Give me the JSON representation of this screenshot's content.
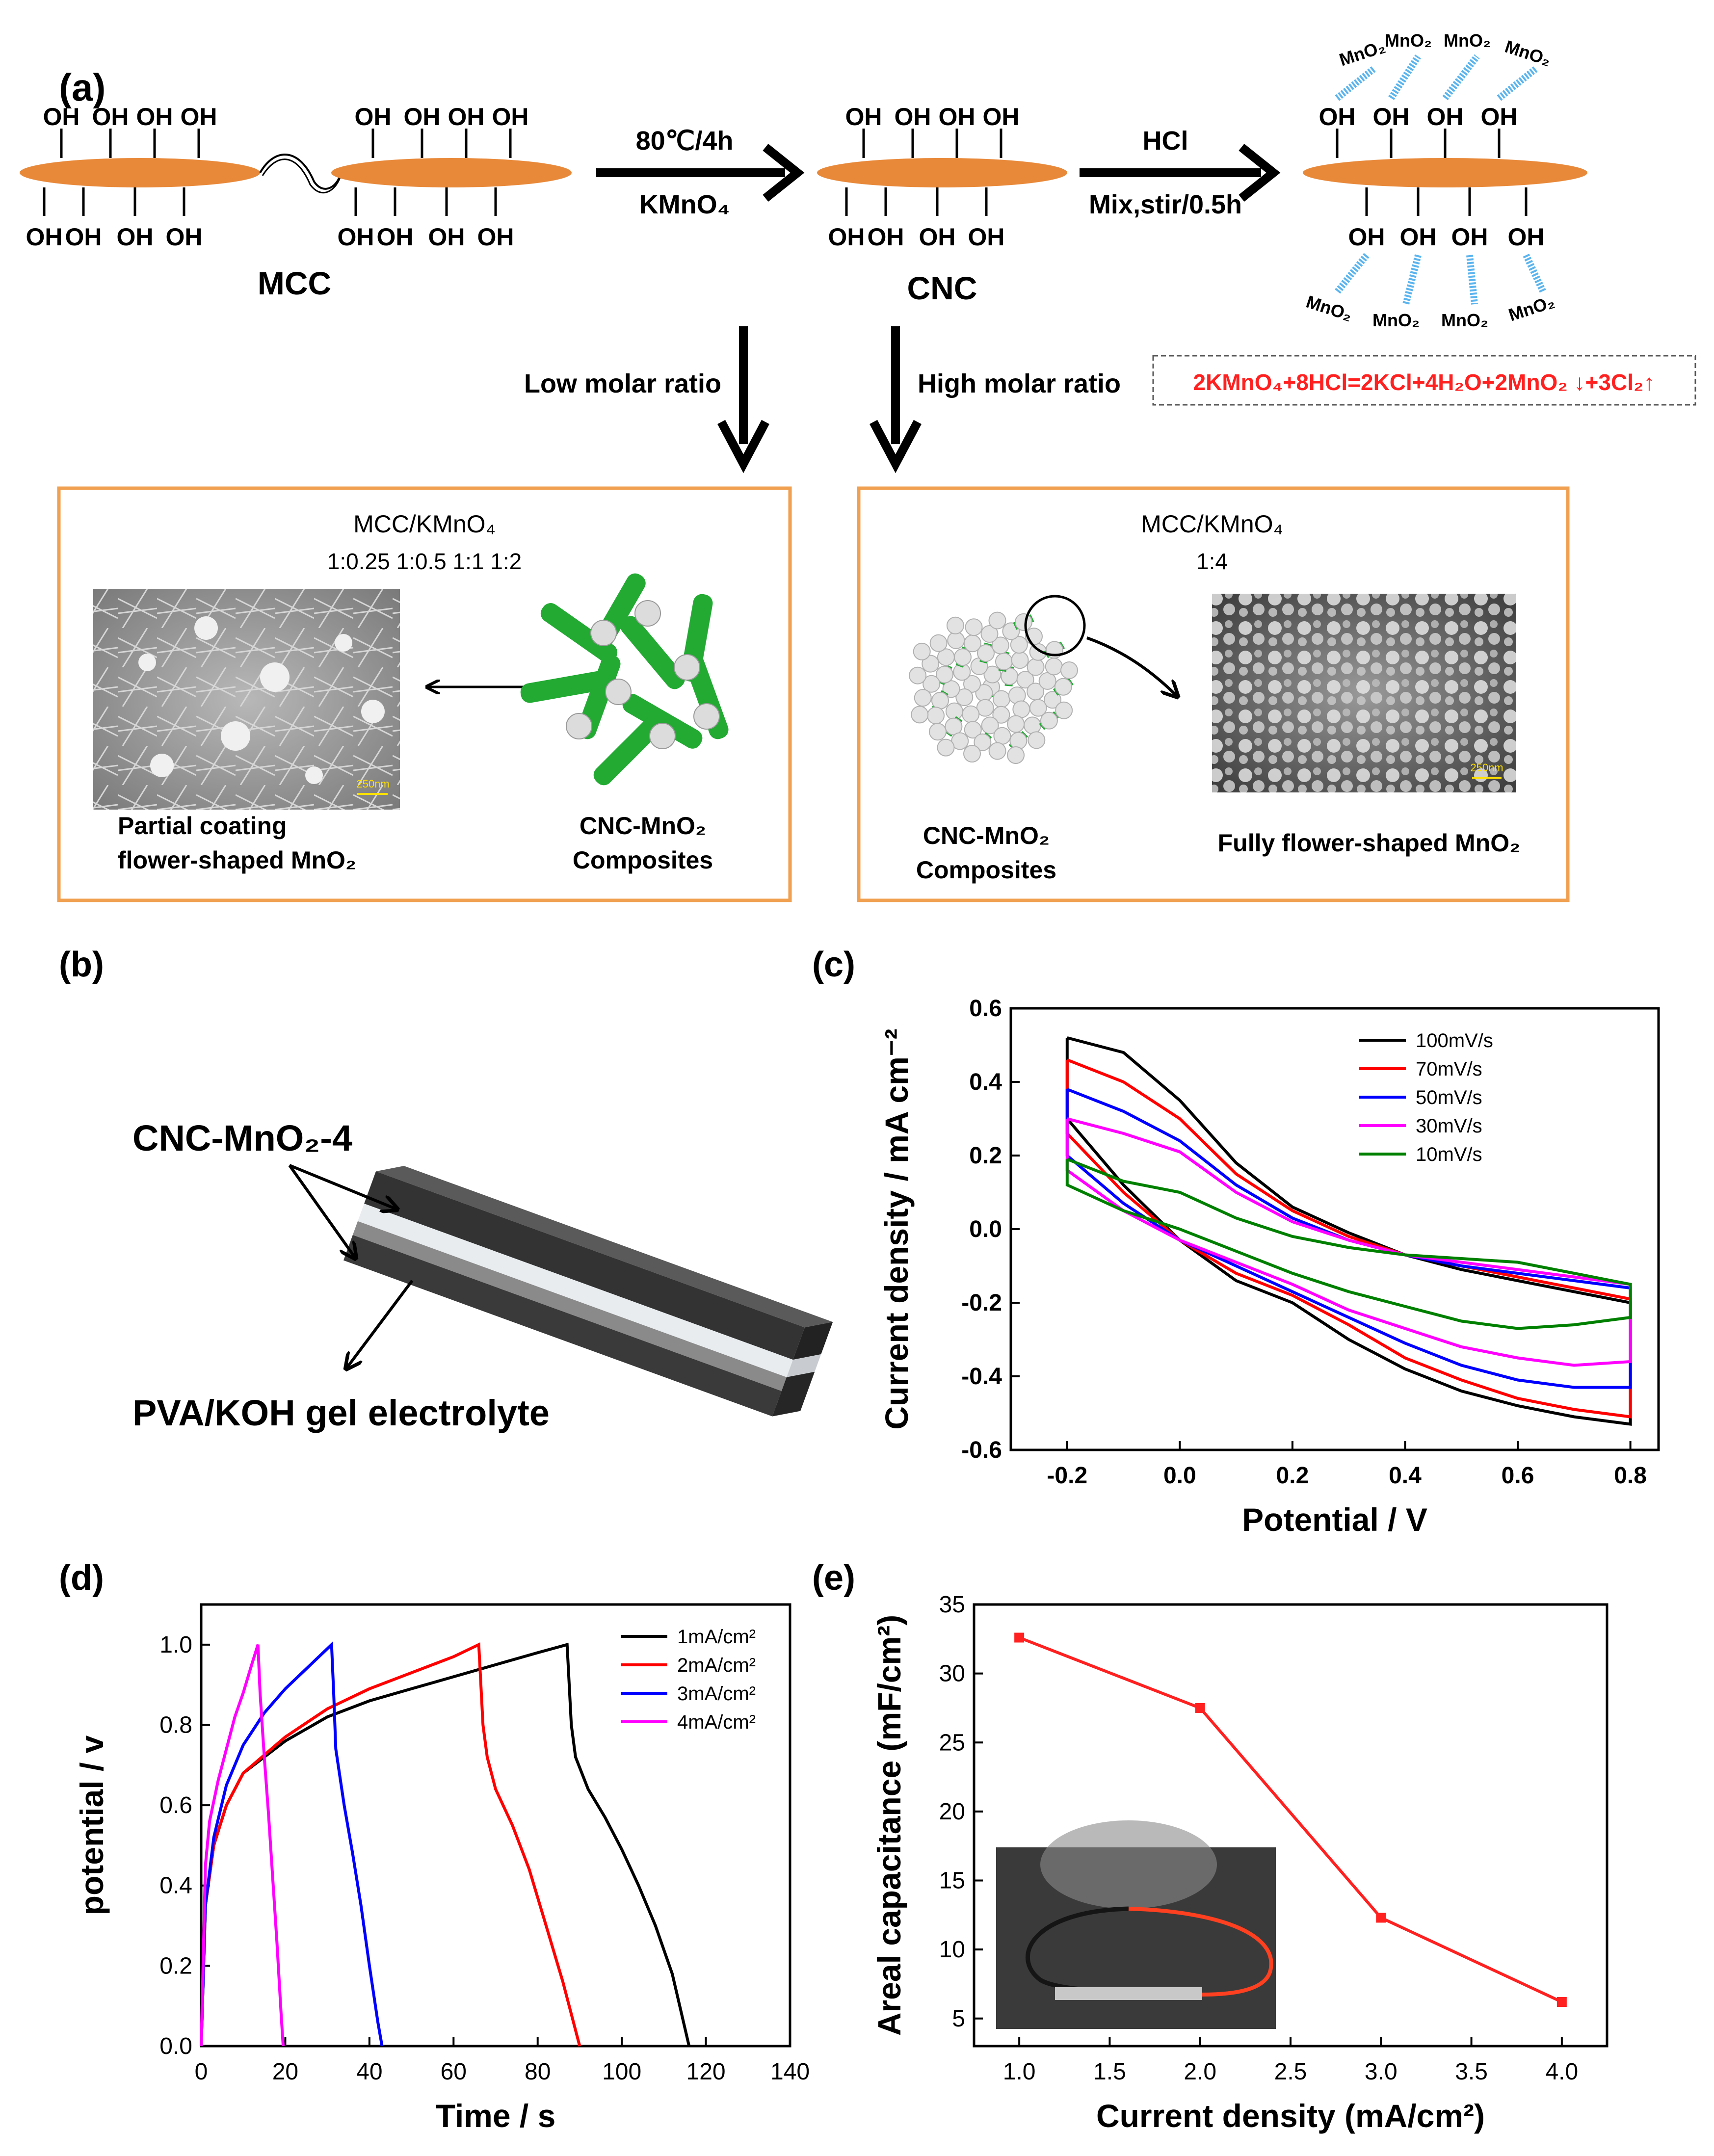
{
  "colors": {
    "orange_box": "#f0a050",
    "ellipse": "#e8893a",
    "red": "#ff2020",
    "green": "#22aa33",
    "glass": "#cfe9ff"
  },
  "panel_a": {
    "label": "(a)",
    "oh": "OH",
    "mcc": "MCC",
    "cnc": "CNC",
    "step1_top": "80℃/4h",
    "step1_bottom": "KMnO₄",
    "step2_top": "HCl",
    "step2_bottom": "Mix,stir/0.5h",
    "mno2": "MnO₂",
    "low_ratio": "Low molar ratio",
    "high_ratio": "High molar ratio",
    "equation": "2KMnO₄+8HCl=2KCl+4H₂O+2MnO₂ ↓+3Cl₂↑",
    "box_left": {
      "title": "MCC/KMnO₄",
      "ratios": "1:0.25 1:0.5 1:1 1:2",
      "scale": "250nm",
      "caption1": "Partial coating",
      "caption2": "flower-shaped MnO₂",
      "composite1": "CNC-MnO₂",
      "composite2": "Composites"
    },
    "box_right": {
      "title": "MCC/KMnO₄",
      "ratios": "1:4",
      "scale": "250nm",
      "composite1": "CNC-MnO₂",
      "composite2": "Composites",
      "caption": "Fully flower-shaped MnO₂"
    }
  },
  "panel_b": {
    "label": "(b)",
    "electrode": "CNC-MnO₂-4",
    "electrolyte": "PVA/KOH gel electrolyte"
  },
  "panel_c": {
    "label": "(c)"
  },
  "panel_d": {
    "label": "(d)"
  },
  "panel_e": {
    "label": "(e)"
  },
  "chart_data": [
    {
      "type": "line",
      "panel": "(c)",
      "xlabel": "Potential / V",
      "ylabel": "Current density / mA cm⁻²",
      "xlim": [
        -0.3,
        0.85
      ],
      "ylim": [
        -0.6,
        0.6
      ],
      "xticks": [
        -0.2,
        0.0,
        0.2,
        0.4,
        0.6,
        0.8
      ],
      "yticks": [
        -0.6,
        -0.4,
        -0.2,
        0.0,
        0.2,
        0.4,
        0.6
      ],
      "legend_position": "top-right",
      "series": [
        {
          "name": "100mV/s",
          "color": "#000000",
          "x": [
            -0.2,
            -0.1,
            0.0,
            0.1,
            0.2,
            0.3,
            0.4,
            0.5,
            0.6,
            0.7,
            0.8,
            0.8,
            0.7,
            0.6,
            0.5,
            0.4,
            0.3,
            0.2,
            0.1,
            0.0,
            -0.1,
            -0.2,
            -0.2
          ],
          "y": [
            0.52,
            0.48,
            0.35,
            0.18,
            0.06,
            -0.01,
            -0.07,
            -0.11,
            -0.14,
            -0.17,
            -0.2,
            -0.53,
            -0.51,
            -0.48,
            -0.44,
            -0.38,
            -0.3,
            -0.2,
            -0.14,
            -0.03,
            0.12,
            0.3,
            0.52
          ]
        },
        {
          "name": "70mV/s",
          "color": "#ff0000",
          "x": [
            -0.2,
            -0.1,
            0.0,
            0.1,
            0.2,
            0.3,
            0.4,
            0.5,
            0.6,
            0.7,
            0.8,
            0.8,
            0.7,
            0.6,
            0.5,
            0.4,
            0.3,
            0.2,
            0.1,
            0.0,
            -0.1,
            -0.2,
            -0.2
          ],
          "y": [
            0.46,
            0.4,
            0.3,
            0.15,
            0.05,
            -0.02,
            -0.07,
            -0.1,
            -0.13,
            -0.16,
            -0.19,
            -0.51,
            -0.49,
            -0.46,
            -0.41,
            -0.35,
            -0.26,
            -0.18,
            -0.12,
            -0.03,
            0.1,
            0.26,
            0.46
          ]
        },
        {
          "name": "50mV/s",
          "color": "#0000ff",
          "x": [
            -0.2,
            -0.1,
            0.0,
            0.1,
            0.2,
            0.3,
            0.4,
            0.5,
            0.6,
            0.7,
            0.8,
            0.8,
            0.7,
            0.6,
            0.5,
            0.4,
            0.3,
            0.2,
            0.1,
            0.0,
            -0.1,
            -0.2,
            -0.2
          ],
          "y": [
            0.38,
            0.32,
            0.24,
            0.12,
            0.03,
            -0.03,
            -0.07,
            -0.1,
            -0.12,
            -0.14,
            -0.16,
            -0.43,
            -0.43,
            -0.41,
            -0.37,
            -0.31,
            -0.24,
            -0.17,
            -0.1,
            -0.03,
            0.07,
            0.2,
            0.38
          ]
        },
        {
          "name": "30mV/s",
          "color": "#ff00ff",
          "x": [
            -0.2,
            -0.1,
            0.0,
            0.1,
            0.2,
            0.3,
            0.4,
            0.5,
            0.6,
            0.7,
            0.8,
            0.8,
            0.7,
            0.6,
            0.5,
            0.4,
            0.3,
            0.2,
            0.1,
            0.0,
            -0.1,
            -0.2,
            -0.2
          ],
          "y": [
            0.3,
            0.26,
            0.21,
            0.1,
            0.02,
            -0.03,
            -0.07,
            -0.09,
            -0.11,
            -0.13,
            -0.15,
            -0.36,
            -0.37,
            -0.35,
            -0.32,
            -0.27,
            -0.22,
            -0.15,
            -0.09,
            -0.03,
            0.05,
            0.16,
            0.3
          ]
        },
        {
          "name": "10mV/s",
          "color": "#008000",
          "x": [
            -0.2,
            -0.1,
            0.0,
            0.1,
            0.2,
            0.3,
            0.4,
            0.5,
            0.6,
            0.7,
            0.8,
            0.8,
            0.7,
            0.6,
            0.5,
            0.4,
            0.3,
            0.2,
            0.1,
            0.0,
            -0.1,
            -0.2,
            -0.2
          ],
          "y": [
            0.19,
            0.13,
            0.1,
            0.03,
            -0.02,
            -0.05,
            -0.07,
            -0.08,
            -0.09,
            -0.12,
            -0.15,
            -0.24,
            -0.26,
            -0.27,
            -0.25,
            -0.21,
            -0.17,
            -0.12,
            -0.06,
            0.0,
            0.05,
            0.12,
            0.19
          ]
        }
      ]
    },
    {
      "type": "line",
      "panel": "(d)",
      "xlabel": "Time / s",
      "ylabel": "potential / v",
      "xlim": [
        0,
        140
      ],
      "ylim": [
        0,
        1.1
      ],
      "xticks": [
        0,
        20,
        40,
        60,
        80,
        100,
        120,
        140
      ],
      "yticks": [
        0.0,
        0.2,
        0.4,
        0.6,
        0.8,
        1.0
      ],
      "legend_position": "top-right",
      "series": [
        {
          "name": "1mA/cm²",
          "color": "#000000",
          "x": [
            0,
            1,
            3,
            6,
            10,
            20,
            30,
            40,
            50,
            60,
            70,
            80,
            87,
            87.5,
            88,
            89,
            92,
            96,
            100,
            104,
            108,
            112,
            116
          ],
          "y": [
            0,
            0.35,
            0.5,
            0.6,
            0.68,
            0.76,
            0.82,
            0.86,
            0.89,
            0.92,
            0.95,
            0.98,
            1.0,
            0.9,
            0.8,
            0.72,
            0.64,
            0.57,
            0.49,
            0.4,
            0.3,
            0.18,
            0.0
          ]
        },
        {
          "name": "2mA/cm²",
          "color": "#ff0000",
          "x": [
            0,
            1,
            3,
            6,
            10,
            20,
            30,
            40,
            50,
            60,
            66,
            66.5,
            67,
            68,
            70,
            74,
            78,
            82,
            86,
            90
          ],
          "y": [
            0,
            0.35,
            0.5,
            0.6,
            0.68,
            0.77,
            0.84,
            0.89,
            0.93,
            0.97,
            1.0,
            0.9,
            0.8,
            0.72,
            0.64,
            0.55,
            0.44,
            0.3,
            0.16,
            0.0
          ]
        },
        {
          "name": "3mA/cm²",
          "color": "#0000ff",
          "x": [
            0,
            1,
            3,
            6,
            10,
            15,
            20,
            25,
            31,
            31.5,
            32,
            34,
            36,
            38,
            40,
            42,
            43
          ],
          "y": [
            0,
            0.35,
            0.52,
            0.65,
            0.75,
            0.83,
            0.89,
            0.94,
            1.0,
            0.88,
            0.74,
            0.6,
            0.48,
            0.35,
            0.2,
            0.06,
            0.0
          ]
        },
        {
          "name": "4mA/cm²",
          "color": "#ff00ff",
          "x": [
            0,
            1,
            2,
            4,
            6,
            8,
            10,
            12,
            13.5,
            14,
            15,
            16,
            17,
            18,
            19,
            19.5
          ],
          "y": [
            0,
            0.45,
            0.56,
            0.66,
            0.74,
            0.82,
            0.88,
            0.95,
            1.0,
            0.88,
            0.72,
            0.58,
            0.42,
            0.26,
            0.08,
            0.0
          ]
        }
      ]
    },
    {
      "type": "line",
      "panel": "(e)",
      "xlabel": "Current density (mA/cm²)",
      "ylabel": "Areal capacitance (mF/cm²)",
      "xlim": [
        0.75,
        4.25
      ],
      "ylim": [
        3,
        35
      ],
      "xticks": [
        1.0,
        1.5,
        2.0,
        2.5,
        3.0,
        3.5,
        4.0
      ],
      "yticks": [
        5,
        10,
        15,
        20,
        25,
        30,
        35
      ],
      "series": [
        {
          "name": "",
          "color": "#ff2020",
          "x": [
            1,
            2,
            3,
            4
          ],
          "y": [
            32.6,
            27.5,
            12.3,
            6.2
          ]
        }
      ]
    }
  ]
}
